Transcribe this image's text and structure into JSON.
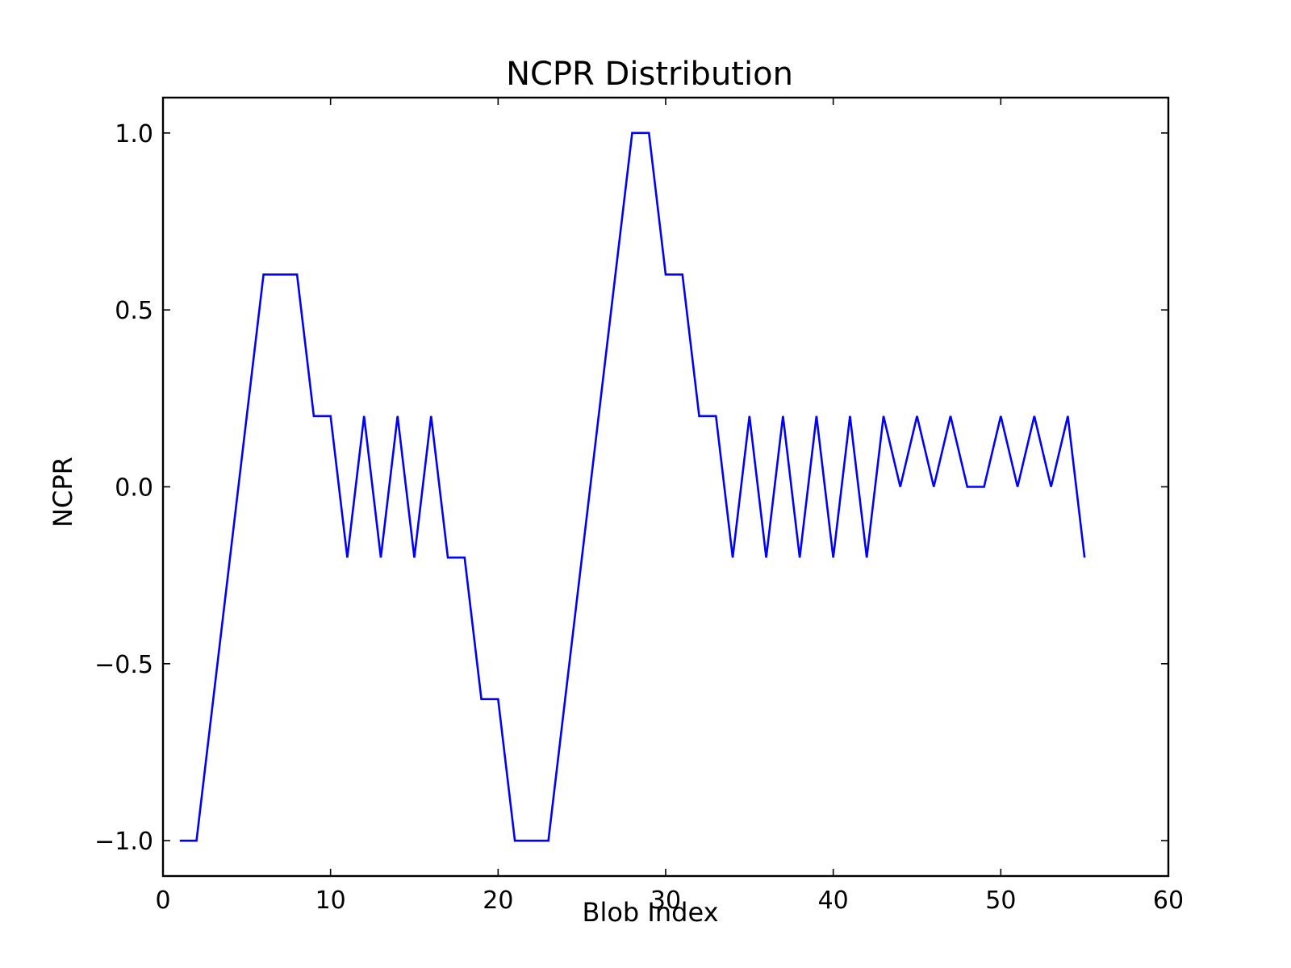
{
  "chart_data": {
    "type": "line",
    "title": "NCPR Distribution",
    "xlabel": "Blob Index",
    "ylabel": "NCPR",
    "xlim": [
      0,
      60
    ],
    "ylim": [
      -1.1,
      1.1
    ],
    "grid": false,
    "x_ticks": [
      0,
      10,
      20,
      30,
      40,
      50,
      60
    ],
    "x_tick_labels": [
      "0",
      "10",
      "20",
      "30",
      "40",
      "50",
      "60"
    ],
    "y_ticks": [
      1.0,
      0.5,
      0.0,
      -0.5,
      -1.0
    ],
    "y_tick_labels": [
      "1.0",
      "0.5",
      "0.0",
      "−0.5",
      "−1.0"
    ],
    "series": [
      {
        "color": "#0000ff",
        "x": [
          1,
          2,
          3,
          4,
          5,
          6,
          7,
          8,
          9,
          10,
          11,
          12,
          13,
          14,
          15,
          16,
          17,
          18,
          19,
          20,
          21,
          22,
          23,
          24,
          25,
          26,
          27,
          28,
          29,
          30,
          31,
          32,
          33,
          34,
          35,
          36,
          37,
          38,
          39,
          40,
          41,
          42,
          43,
          44,
          45,
          46,
          47,
          48,
          49,
          50,
          51,
          52,
          53,
          54,
          55
        ],
        "values": [
          -1.0,
          -1.0,
          -0.6,
          -0.2,
          0.2,
          0.6,
          0.6,
          0.6,
          0.2,
          0.2,
          -0.2,
          0.2,
          -0.2,
          0.2,
          -0.2,
          0.2,
          -0.2,
          -0.2,
          -0.6,
          -0.6,
          -1.0,
          -1.0,
          -1.0,
          -0.6,
          -0.2,
          0.2,
          0.6,
          1.0,
          1.0,
          0.6,
          0.6,
          0.2,
          0.2,
          -0.2,
          0.2,
          -0.2,
          0.2,
          -0.2,
          0.2,
          -0.2,
          0.2,
          -0.2,
          0.2,
          0.0,
          0.2,
          0.0,
          0.2,
          0.0,
          0.0,
          0.2,
          0.0,
          0.2,
          0.0,
          0.2,
          -0.2
        ]
      }
    ]
  }
}
